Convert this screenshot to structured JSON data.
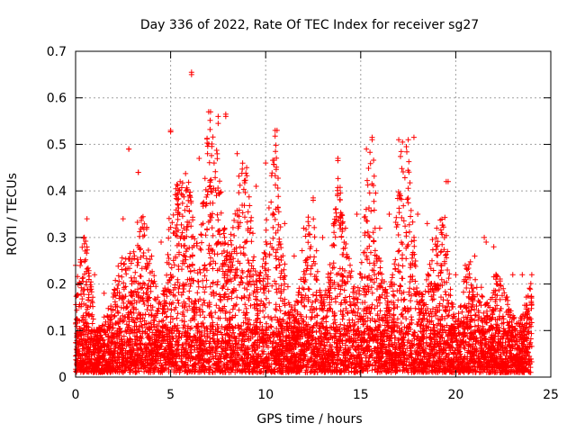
{
  "chart_data": {
    "type": "scatter",
    "title": "Day 336 of 2022, Rate Of TEC Index for receiver sg27",
    "xlabel": "GPS time / hours",
    "ylabel": "ROTI / TECUs",
    "xlim": [
      0,
      25
    ],
    "ylim": [
      0,
      0.7
    ],
    "xticks": [
      "0",
      "5",
      "10",
      "15",
      "20",
      "25"
    ],
    "yticks": [
      "0",
      "0.1",
      "0.2",
      "0.3",
      "0.4",
      "0.5",
      "0.6",
      "0.7"
    ],
    "grid": true,
    "marker": "+",
    "color": "#ff0000",
    "x_range_data": [
      0,
      24
    ],
    "envelope": [
      {
        "x": 0.0,
        "ymax": 0.24
      },
      {
        "x": 0.6,
        "ymax": 0.34
      },
      {
        "x": 1.0,
        "ymax": 0.22
      },
      {
        "x": 1.5,
        "ymax": 0.18
      },
      {
        "x": 2.0,
        "ymax": 0.18
      },
      {
        "x": 2.5,
        "ymax": 0.34
      },
      {
        "x": 2.8,
        "ymax": 0.49
      },
      {
        "x": 3.3,
        "ymax": 0.44
      },
      {
        "x": 4.0,
        "ymax": 0.26
      },
      {
        "x": 4.5,
        "ymax": 0.29
      },
      {
        "x": 5.0,
        "ymax": 0.53
      },
      {
        "x": 5.5,
        "ymax": 0.42
      },
      {
        "x": 6.1,
        "ymax": 0.65
      },
      {
        "x": 6.5,
        "ymax": 0.47
      },
      {
        "x": 7.0,
        "ymax": 0.57
      },
      {
        "x": 7.5,
        "ymax": 0.56
      },
      {
        "x": 7.9,
        "ymax": 0.56
      },
      {
        "x": 8.5,
        "ymax": 0.48
      },
      {
        "x": 9.0,
        "ymax": 0.45
      },
      {
        "x": 9.5,
        "ymax": 0.41
      },
      {
        "x": 10.0,
        "ymax": 0.46
      },
      {
        "x": 10.5,
        "ymax": 0.53
      },
      {
        "x": 11.0,
        "ymax": 0.33
      },
      {
        "x": 11.5,
        "ymax": 0.26
      },
      {
        "x": 12.0,
        "ymax": 0.32
      },
      {
        "x": 12.5,
        "ymax": 0.38
      },
      {
        "x": 13.0,
        "ymax": 0.3
      },
      {
        "x": 13.8,
        "ymax": 0.47
      },
      {
        "x": 14.2,
        "ymax": 0.32
      },
      {
        "x": 14.8,
        "ymax": 0.35
      },
      {
        "x": 15.3,
        "ymax": 0.49
      },
      {
        "x": 15.6,
        "ymax": 0.51
      },
      {
        "x": 16.0,
        "ymax": 0.32
      },
      {
        "x": 16.5,
        "ymax": 0.35
      },
      {
        "x": 17.0,
        "ymax": 0.51
      },
      {
        "x": 17.5,
        "ymax": 0.51
      },
      {
        "x": 18.0,
        "ymax": 0.35
      },
      {
        "x": 18.5,
        "ymax": 0.33
      },
      {
        "x": 19.0,
        "ymax": 0.32
      },
      {
        "x": 19.5,
        "ymax": 0.42
      },
      {
        "x": 20.0,
        "ymax": 0.22
      },
      {
        "x": 20.5,
        "ymax": 0.24
      },
      {
        "x": 21.0,
        "ymax": 0.26
      },
      {
        "x": 21.5,
        "ymax": 0.3
      },
      {
        "x": 22.0,
        "ymax": 0.28
      },
      {
        "x": 22.5,
        "ymax": 0.19
      },
      {
        "x": 23.0,
        "ymax": 0.22
      },
      {
        "x": 23.5,
        "ymax": 0.22
      },
      {
        "x": 24.0,
        "ymax": 0.22
      }
    ],
    "outliers": [
      {
        "x": 6.1,
        "y": 0.655
      },
      {
        "x": 7.1,
        "y": 0.57
      },
      {
        "x": 7.9,
        "y": 0.565
      },
      {
        "x": 7.5,
        "y": 0.545
      },
      {
        "x": 10.6,
        "y": 0.53
      },
      {
        "x": 5.0,
        "y": 0.527
      },
      {
        "x": 15.6,
        "y": 0.515
      },
      {
        "x": 17.8,
        "y": 0.515
      },
      {
        "x": 17.2,
        "y": 0.505
      },
      {
        "x": 2.8,
        "y": 0.49
      },
      {
        "x": 13.8,
        "y": 0.465
      },
      {
        "x": 3.3,
        "y": 0.44
      },
      {
        "x": 19.6,
        "y": 0.42
      },
      {
        "x": 12.5,
        "y": 0.385
      },
      {
        "x": 21.6,
        "y": 0.29
      }
    ],
    "baseline_min": 0.01
  }
}
